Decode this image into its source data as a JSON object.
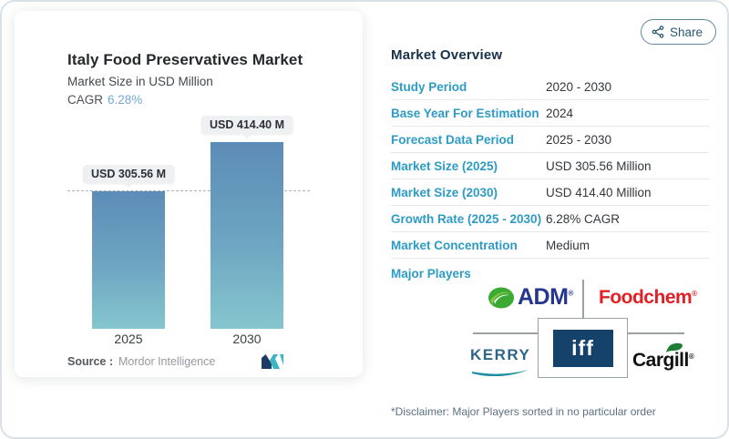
{
  "share_button": {
    "label": "Share"
  },
  "chart": {
    "title": "Italy Food Preservatives Market",
    "subtitle": "Market Size in USD Million",
    "cagr_label": "CAGR",
    "cagr_value": "6.28%",
    "source_label": "Source :",
    "source_value": "Mordor Intelligence"
  },
  "chart_data": {
    "type": "bar",
    "title": "Italy Food Preservatives Market",
    "ylabel": "Market Size (USD Million)",
    "categories": [
      "2025",
      "2030"
    ],
    "values": [
      305.56,
      414.4
    ],
    "bar_labels": [
      "USD 305.56 M",
      "USD 414.40 M"
    ],
    "cagr": "6.28%",
    "ylim": [
      0,
      440
    ],
    "grid": false,
    "legend": "none",
    "annotations": [
      "horizontal dashed reference line at 2025 bar top (305.56)"
    ],
    "source": "Mordor Intelligence"
  },
  "overview": {
    "title": "Market Overview",
    "rows": [
      {
        "label": "Study Period",
        "value": "2020 - 2030"
      },
      {
        "label": "Base Year For Estimation",
        "value": "2024"
      },
      {
        "label": "Forecast Data Period",
        "value": "2025 - 2030"
      },
      {
        "label": "Market Size (2025)",
        "value": "USD 305.56 Million"
      },
      {
        "label": "Market Size (2030)",
        "value": "USD 414.40 Million"
      },
      {
        "label": "Growth Rate (2025 - 2030)",
        "value": "6.28% CAGR"
      },
      {
        "label": "Market Concentration",
        "value": "Medium"
      }
    ],
    "major_players_label": "Major Players",
    "players": [
      {
        "text": "ADM",
        "mark": "®"
      },
      {
        "text": "Foodchem",
        "mark": "®"
      },
      {
        "text": "KERRY"
      },
      {
        "text": "iff"
      },
      {
        "text": "Cargill",
        "mark": "®"
      }
    ]
  },
  "disclaimer": "*Disclaimer: Major Players sorted in no particular order",
  "colors": {
    "accent_blue": "#2d9bc5",
    "heading_navy": "#17324a",
    "cagr_blue": "#74a9d8",
    "bar_gradient_top": "#5c8cb7",
    "bar_gradient_bottom": "#85c6ce",
    "adm_blue": "#26358e",
    "foodchem_red": "#e31f26",
    "kerry_blue": "#2e6586",
    "iff_navy": "#14426b"
  }
}
